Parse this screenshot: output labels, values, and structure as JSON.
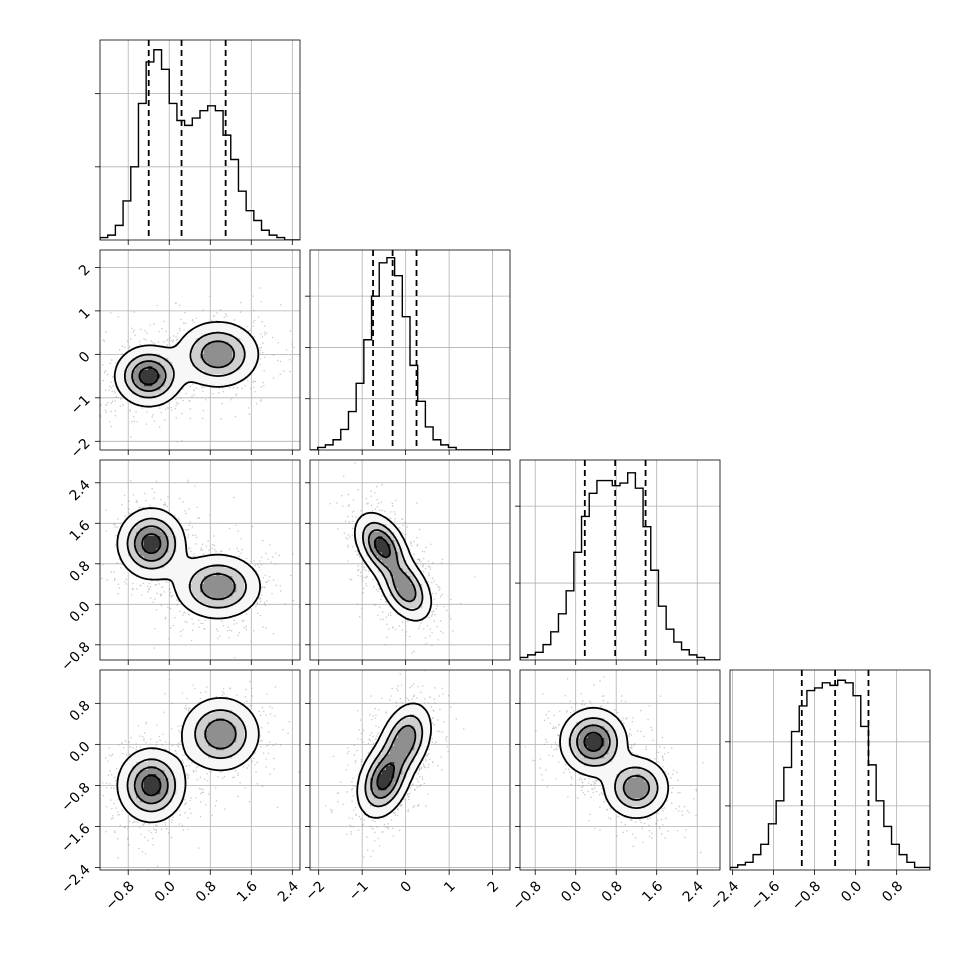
{
  "chart_data": {
    "type": "corner",
    "title": "",
    "n_params": 4,
    "grid": true,
    "params": [
      {
        "index": 0,
        "axis_label": "",
        "range": [
          -1.35,
          2.55
        ],
        "ticks": [
          -0.8,
          0.0,
          0.8,
          1.6,
          2.4
        ],
        "tick_labels": [
          "−0.8",
          "0.0",
          "0.8",
          "1.6",
          "2.4"
        ],
        "quantiles": [
          -0.4,
          0.24,
          1.1
        ],
        "hist": {
          "bins": 26,
          "counts": [
            1,
            2,
            6,
            16,
            30,
            56,
            73,
            78,
            70,
            56,
            49,
            47,
            50,
            53,
            55,
            53,
            43,
            33,
            20,
            12,
            8,
            4,
            2,
            1,
            0,
            0
          ],
          "ymax": 82,
          "yticks": [
            30,
            60
          ]
        }
      },
      {
        "index": 1,
        "axis_label": "",
        "range": [
          -2.2,
          2.4
        ],
        "ticks": [
          -2,
          -1,
          0,
          1,
          2
        ],
        "tick_labels": [
          "−2",
          "−1",
          "0",
          "1",
          "2"
        ],
        "quantiles": [
          -0.75,
          -0.3,
          0.25
        ],
        "hist": {
          "bins": 26,
          "counts": [
            0,
            1,
            2,
            4,
            8,
            15,
            26,
            43,
            60,
            73,
            75,
            68,
            52,
            33,
            19,
            9,
            4,
            2,
            1,
            0,
            0,
            0,
            0,
            0,
            0,
            0
          ],
          "ymax": 78,
          "yticks": [
            20,
            40,
            60
          ]
        }
      },
      {
        "index": 2,
        "axis_label": "",
        "range": [
          -1.1,
          2.85
        ],
        "ticks": [
          -0.8,
          0.0,
          0.8,
          1.6,
          2.4
        ],
        "tick_labels": [
          "−0.8",
          "0.0",
          "0.8",
          "1.6",
          "2.4"
        ],
        "quantiles": [
          0.18,
          0.78,
          1.38
        ],
        "hist": {
          "bins": 26,
          "counts": [
            1,
            2,
            3,
            6,
            11,
            18,
            27,
            42,
            56,
            65,
            70,
            70,
            68,
            69,
            73,
            67,
            52,
            35,
            21,
            12,
            7,
            4,
            2,
            1,
            0,
            0
          ],
          "ymax": 78,
          "yticks": [
            30,
            60
          ]
        }
      },
      {
        "index": 3,
        "axis_label": "",
        "range": [
          -2.45,
          1.45
        ],
        "ticks": [
          -2.4,
          -1.6,
          -0.8,
          0.0,
          0.8
        ],
        "tick_labels": [
          "−2.4",
          "−1.6",
          "−0.8",
          "0.0",
          "0.8"
        ],
        "quantiles": [
          -1.05,
          -0.4,
          0.25
        ],
        "hist": {
          "bins": 26,
          "counts": [
            1,
            2,
            3,
            6,
            10,
            18,
            27,
            40,
            54,
            64,
            70,
            71,
            73,
            72,
            74,
            73,
            68,
            56,
            41,
            27,
            17,
            10,
            6,
            3,
            1,
            1
          ],
          "ymax": 78,
          "yticks": [
            25,
            50
          ]
        }
      }
    ],
    "pairs": [
      {
        "x": 0,
        "y": 1,
        "modes": [
          {
            "mx": -0.4,
            "my": -0.5,
            "sx": 0.32,
            "sy": 0.34,
            "r": 0.0,
            "w": 0.55
          },
          {
            "mx": 0.95,
            "my": 0.0,
            "sx": 0.4,
            "sy": 0.38,
            "r": 0.0,
            "w": 0.45
          }
        ]
      },
      {
        "x": 0,
        "y": 2,
        "modes": [
          {
            "mx": -0.35,
            "my": 1.2,
            "sx": 0.32,
            "sy": 0.34,
            "r": 0.0,
            "w": 0.55
          },
          {
            "mx": 0.95,
            "my": 0.35,
            "sx": 0.42,
            "sy": 0.32,
            "r": 0.0,
            "w": 0.45
          }
        ]
      },
      {
        "x": 0,
        "y": 3,
        "modes": [
          {
            "mx": -0.35,
            "my": -0.8,
            "sx": 0.32,
            "sy": 0.35,
            "r": 0.0,
            "w": 0.55
          },
          {
            "mx": 1.0,
            "my": 0.2,
            "sx": 0.38,
            "sy": 0.36,
            "r": 0.0,
            "w": 0.45
          }
        ]
      },
      {
        "x": 1,
        "y": 2,
        "modes": [
          {
            "mx": -0.55,
            "my": 1.15,
            "sx": 0.3,
            "sy": 0.32,
            "r": -0.4,
            "w": 0.55
          },
          {
            "mx": 0.0,
            "my": 0.3,
            "sx": 0.3,
            "sy": 0.32,
            "r": -0.4,
            "w": 0.45
          }
        ]
      },
      {
        "x": 1,
        "y": 3,
        "modes": [
          {
            "mx": -0.5,
            "my": -0.7,
            "sx": 0.3,
            "sy": 0.36,
            "r": 0.3,
            "w": 0.55
          },
          {
            "mx": 0.0,
            "my": 0.1,
            "sx": 0.3,
            "sy": 0.36,
            "r": 0.3,
            "w": 0.45
          }
        ]
      },
      {
        "x": 2,
        "y": 3,
        "modes": [
          {
            "mx": 0.35,
            "my": 0.05,
            "sx": 0.32,
            "sy": 0.32,
            "r": 0.0,
            "w": 0.55
          },
          {
            "mx": 1.2,
            "my": -0.85,
            "sx": 0.32,
            "sy": 0.3,
            "r": 0.0,
            "w": 0.45
          }
        ]
      }
    ],
    "contour_levels": [
      0.12,
      0.35,
      0.6,
      0.85
    ],
    "scatter_points_per_panel": 900,
    "colors": {
      "hist": "#000000",
      "contour": "#000000",
      "scatter": "#9a9a9a",
      "grid": "#b0b0b0"
    }
  }
}
